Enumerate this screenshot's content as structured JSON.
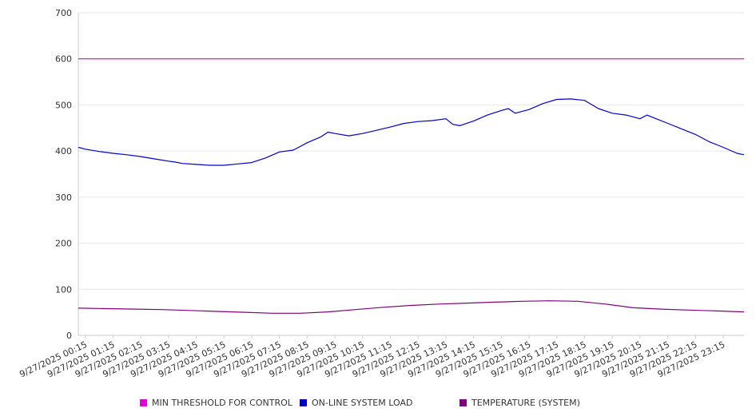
{
  "chart_data": {
    "type": "line",
    "y_ticks": [
      0,
      100,
      200,
      300,
      400,
      500,
      600,
      700
    ],
    "ylim": [
      0,
      700
    ],
    "x_labels": [
      "9/27/2025 00:15",
      "9/27/2025 01:15",
      "9/27/2025 02:15",
      "9/27/2025 03:15",
      "9/27/2025 04:15",
      "9/27/2025 05:15",
      "9/27/2025 06:15",
      "9/27/2025 07:15",
      "9/27/2025 08:15",
      "9/27/2025 09:15",
      "9/27/2025 10:15",
      "9/27/2025 11:15",
      "9/27/2025 12:15",
      "9/27/2025 13:15",
      "9/27/2025 14:15",
      "9/27/2025 15:15",
      "9/27/2025 16:15",
      "9/27/2025 17:15",
      "9/27/2025 18:15",
      "9/27/2025 19:15",
      "9/27/2025 20:15",
      "9/27/2025 21:15",
      "9/27/2025 22:15",
      "9/27/2025 23:15"
    ],
    "grid": true,
    "legend_position": "bottom",
    "series": [
      {
        "name": "MIN THRESHOLD FOR CONTROL",
        "color": "#e000e0",
        "x": [
          "00:00",
          "24:00"
        ],
        "values": [
          600,
          600
        ]
      },
      {
        "name": "ON-LINE SYSTEM LOAD",
        "color": "#0000cc",
        "x": [
          "00:00",
          "00:15",
          "00:45",
          "01:15",
          "01:45",
          "02:15",
          "02:45",
          "03:15",
          "03:30",
          "03:45",
          "04:15",
          "04:45",
          "05:15",
          "05:45",
          "06:15",
          "06:45",
          "07:15",
          "07:45",
          "08:15",
          "08:45",
          "09:00",
          "09:15",
          "09:45",
          "10:15",
          "10:45",
          "11:15",
          "11:45",
          "12:15",
          "12:45",
          "13:15",
          "13:30",
          "13:45",
          "14:15",
          "14:45",
          "15:15",
          "15:30",
          "15:45",
          "16:15",
          "16:45",
          "17:15",
          "17:45",
          "18:15",
          "18:45",
          "19:15",
          "19:45",
          "20:15",
          "20:30",
          "20:45",
          "21:15",
          "21:45",
          "22:15",
          "22:45",
          "23:15",
          "23:45",
          "24:00"
        ],
        "values": [
          408,
          404,
          399,
          395,
          392,
          388,
          383,
          378,
          376,
          373,
          371,
          369,
          369,
          372,
          375,
          385,
          398,
          402,
          418,
          431,
          441,
          438,
          433,
          438,
          445,
          452,
          460,
          464,
          466,
          470,
          458,
          455,
          465,
          478,
          488,
          492,
          482,
          490,
          503,
          512,
          513,
          510,
          492,
          482,
          478,
          470,
          478,
          472,
          460,
          448,
          436,
          420,
          408,
          395,
          392
        ]
      },
      {
        "name": "TEMPERATURE (SYSTEM)",
        "color": "#800080",
        "x": [
          "00:00",
          "01:00",
          "02:00",
          "03:00",
          "04:00",
          "05:00",
          "06:00",
          "07:00",
          "08:00",
          "09:00",
          "10:00",
          "11:00",
          "12:00",
          "13:00",
          "14:00",
          "15:00",
          "16:00",
          "17:00",
          "18:00",
          "19:00",
          "20:00",
          "21:00",
          "22:00",
          "23:00",
          "24:00"
        ],
        "values": [
          59,
          58,
          57,
          56,
          54,
          52,
          50,
          48,
          48,
          51,
          56,
          61,
          65,
          68,
          70,
          72,
          74,
          75,
          74,
          68,
          60,
          57,
          55,
          53,
          51
        ]
      }
    ]
  }
}
